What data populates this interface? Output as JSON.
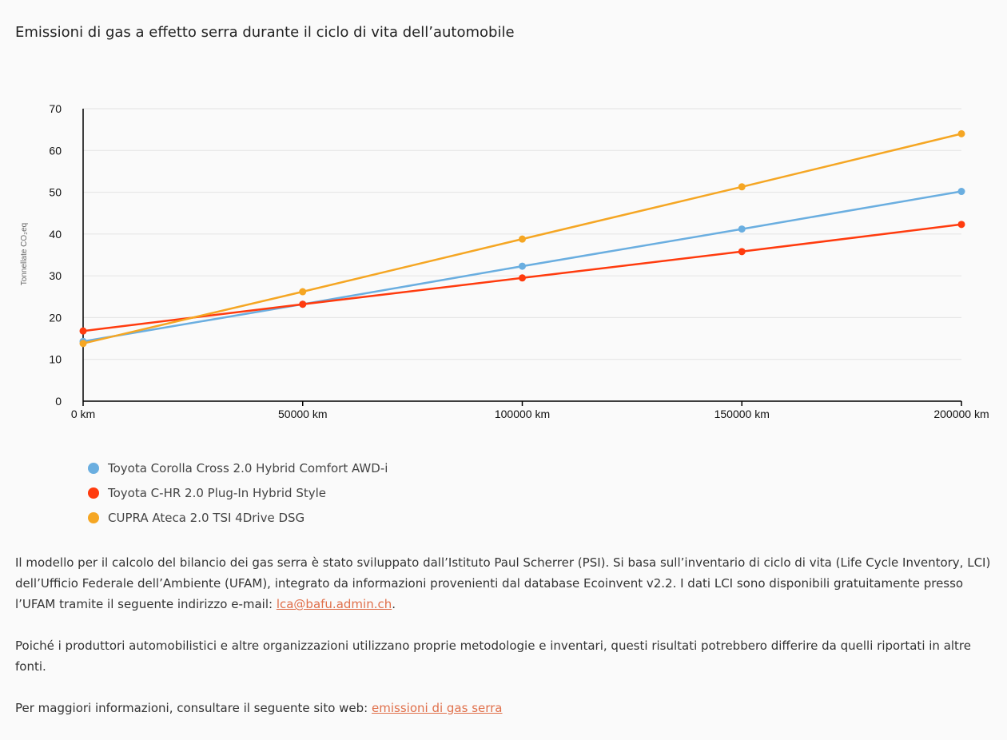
{
  "chart_data": {
    "type": "line",
    "title": "Emissioni di gas a effetto serra durante il ciclo di vita dell’automobile",
    "ylabel": "Tonnellate CO₂eq",
    "xlabel": "",
    "x": [
      0,
      50000,
      100000,
      150000,
      200000
    ],
    "x_tick_labels": [
      "0 km",
      "50000 km",
      "100000 km",
      "150000 km",
      "200000 km"
    ],
    "ylim": [
      0,
      70
    ],
    "y_ticks": [
      0,
      10,
      20,
      30,
      40,
      50,
      60,
      70
    ],
    "grid": true,
    "legend_position": "bottom-left",
    "series": [
      {
        "name": "Toyota Corolla Cross 2.0 Hybrid Comfort AWD-i",
        "color": "#6aaee0",
        "values": [
          14.3,
          23.2,
          32.3,
          41.2,
          50.2
        ]
      },
      {
        "name": "Toyota C-HR 2.0 Plug-In Hybrid Style",
        "color": "#ff3b0e",
        "values": [
          16.8,
          23.2,
          29.5,
          35.8,
          42.3
        ]
      },
      {
        "name": "CUPRA Ateca 2.0 TSI 4Drive DSG",
        "color": "#f5a623",
        "values": [
          13.8,
          26.2,
          38.8,
          51.3,
          64.0
        ]
      }
    ]
  },
  "text": {
    "paragraph1_before_link": "Il modello per il calcolo del bilancio dei gas serra è stato sviluppato dall’Istituto Paul Scherrer (PSI). Si basa sull’inventario di ciclo di vita (Life Cycle Inventory, LCI) dell’Ufficio Federale dell’Ambiente (UFAM), integrato da informazioni provenienti dal database Ecoinvent v2.2. I dati LCI sono disponibili gratuitamente presso l’UFAM tramite il seguente indirizzo e-mail: ",
    "paragraph1_link": "lca@bafu.admin.ch",
    "paragraph1_after_link": ".",
    "paragraph2": "Poiché i produttori automobilistici e altre organizzazioni utilizzano proprie metodologie e inventari, questi risultati potrebbero differire da quelli riportati in altre fonti.",
    "paragraph3_before_link": "Per maggiori informazioni, consultare il seguente sito web: ",
    "paragraph3_link": "emissioni di gas serra"
  }
}
